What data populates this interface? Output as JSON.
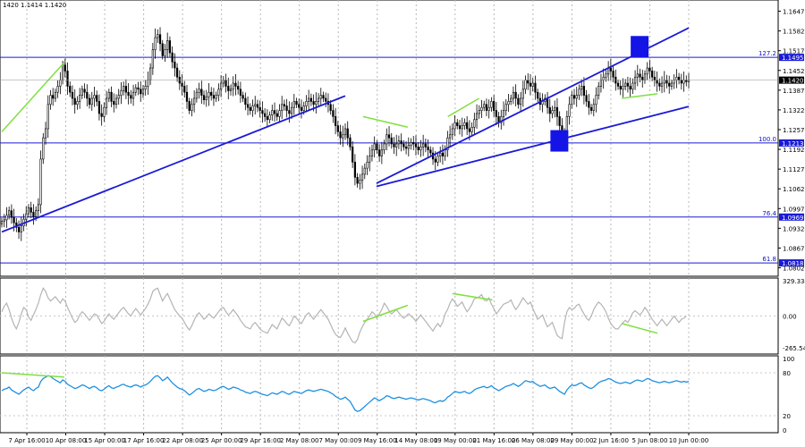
{
  "header": {
    "ohlc": "1420 1.1414 1.1420"
  },
  "colors": {
    "candle": "#000000",
    "level": "#1a1ad6",
    "trendline": "#1a1ad6",
    "divergence": "#80e040",
    "cci": "#b4b4b4",
    "rsi": "#1e90e0",
    "marker": "#1414e6",
    "price_tag": "#000000"
  },
  "chart_data": [
    {
      "type": "candlestick",
      "name": "",
      "ylim": [
        1.078,
        1.1678
      ],
      "price_ticks": [
        "1.1647",
        "1.1582",
        "1.1517",
        "1.1452",
        "1.1387",
        "1.1322",
        "1.1257",
        "1.1192",
        "1.1127",
        "1.1062",
        "1.0997",
        "1.0932",
        "1.0867",
        "1.0802"
      ],
      "current_price": "1.1420",
      "levels": [
        {
          "ratio": "127.2",
          "value": "1.1495"
        },
        {
          "ratio": "100.0",
          "value": "1.1213"
        },
        {
          "ratio": "76.4",
          "value": "1.0969"
        },
        {
          "ratio": "61.8",
          "value": "1.0818"
        }
      ],
      "x_labels": [
        "7 Apr 16:00",
        "10 Apr 08:00",
        "15 Apr 00:00",
        "17 Apr 16:00",
        "22 Apr 08:00",
        "25 Apr 00:00",
        "29 Apr 16:00",
        "2 May 08:00",
        "7 May 00:00",
        "9 May 16:00",
        "14 May 08:00",
        "19 May 00:00",
        "21 May 16:00",
        "26 May 08:00",
        "29 May 00:00",
        "2 Jun 16:00",
        "5 Jun 08:00",
        "10 Jun 00:00"
      ],
      "series": {
        "close": [
          1.0955,
          1.096,
          1.0975,
          1.099,
          1.0968,
          1.095,
          1.0935,
          1.092,
          1.094,
          1.0962,
          1.098,
          1.1,
          1.0985,
          1.097,
          1.099,
          1.101,
          1.116,
          1.123,
          1.126,
          1.134,
          1.137,
          1.136,
          1.138,
          1.14,
          1.142,
          1.147,
          1.145,
          1.14,
          1.138,
          1.136,
          1.134,
          1.135,
          1.137,
          1.139,
          1.138,
          1.136,
          1.134,
          1.136,
          1.137,
          1.135,
          1.131,
          1.13,
          1.133,
          1.136,
          1.138,
          1.135,
          1.134,
          1.136,
          1.137,
          1.1385,
          1.14,
          1.138,
          1.137,
          1.136,
          1.138,
          1.1395,
          1.139,
          1.1375,
          1.139,
          1.14,
          1.142,
          1.146,
          1.152,
          1.156,
          1.157,
          1.154,
          1.15,
          1.152,
          1.155,
          1.151,
          1.148,
          1.146,
          1.143,
          1.141,
          1.14,
          1.138,
          1.135,
          1.132,
          1.134,
          1.136,
          1.138,
          1.139,
          1.137,
          1.1355,
          1.1365,
          1.138,
          1.137,
          1.136,
          1.137,
          1.139,
          1.141,
          1.142,
          1.14,
          1.1385,
          1.139,
          1.141,
          1.14,
          1.139,
          1.137,
          1.136,
          1.134,
          1.133,
          1.132,
          1.1335,
          1.134,
          1.133,
          1.132,
          1.131,
          1.13,
          1.129,
          1.1305,
          1.132,
          1.131,
          1.13,
          1.132,
          1.134,
          1.1335,
          1.132,
          1.131,
          1.133,
          1.135,
          1.134,
          1.133,
          1.132,
          1.1335,
          1.135,
          1.136,
          1.135,
          1.134,
          1.135,
          1.136,
          1.137,
          1.136,
          1.135,
          1.134,
          1.132,
          1.13,
          1.127,
          1.125,
          1.123,
          1.124,
          1.126,
          1.123,
          1.12,
          1.115,
          1.11,
          1.108,
          1.109,
          1.111,
          1.113,
          1.115,
          1.117,
          1.119,
          1.121,
          1.119,
          1.117,
          1.119,
          1.121,
          1.124,
          1.123,
          1.121,
          1.12,
          1.121,
          1.122,
          1.121,
          1.12,
          1.1195,
          1.1205,
          1.1215,
          1.121,
          1.12,
          1.119,
          1.12,
          1.121,
          1.12,
          1.119,
          1.118,
          1.116,
          1.115,
          1.117,
          1.118,
          1.117,
          1.119,
          1.123,
          1.124,
          1.126,
          1.128,
          1.127,
          1.126,
          1.127,
          1.128,
          1.126,
          1.125,
          1.1265,
          1.129,
          1.131,
          1.132,
          1.133,
          1.134,
          1.132,
          1.133,
          1.135,
          1.132,
          1.13,
          1.128,
          1.13,
          1.132,
          1.134,
          1.135,
          1.136,
          1.138,
          1.136,
          1.134,
          1.136,
          1.139,
          1.142,
          1.141,
          1.14,
          1.141,
          1.138,
          1.136,
          1.134,
          1.135,
          1.136,
          1.133,
          1.131,
          1.132,
          1.133,
          1.13,
          1.127,
          1.125,
          1.124,
          1.13,
          1.134,
          1.137,
          1.136,
          1.137,
          1.139,
          1.14,
          1.137,
          1.135,
          1.133,
          1.132,
          1.134,
          1.137,
          1.14,
          1.142,
          1.143,
          1.144,
          1.146,
          1.145,
          1.143,
          1.141,
          1.14,
          1.139,
          1.14,
          1.141,
          1.14,
          1.139,
          1.141,
          1.143,
          1.144,
          1.143,
          1.142,
          1.144,
          1.146,
          1.145,
          1.143,
          1.142,
          1.141,
          1.14,
          1.141,
          1.142,
          1.141,
          1.14,
          1.141,
          1.142,
          1.143,
          1.142,
          1.141,
          1.142,
          1.1415,
          1.142
        ]
      },
      "trendlines": [
        {
          "from": [
            0,
            1.092
          ],
          "to": [
            77,
            1.1368
          ]
        },
        {
          "from": [
            84,
            1.108
          ],
          "to": [
            154,
            1.1592
          ]
        },
        {
          "from": [
            84,
            1.107
          ],
          "to": [
            154,
            1.1333
          ]
        }
      ],
      "divergences": [
        {
          "from": [
            0,
            1.125
          ],
          "to": [
            14,
            1.1478
          ]
        },
        {
          "from": [
            81,
            1.13
          ],
          "to": [
            91,
            1.1265
          ]
        },
        {
          "from": [
            100,
            1.13
          ],
          "to": [
            107,
            1.136
          ]
        },
        {
          "from": [
            139,
            1.136
          ],
          "to": [
            147,
            1.1375
          ]
        }
      ],
      "markers": [
        {
          "x": 125,
          "price": 1.122
        },
        {
          "x": 143,
          "price": 1.153
        }
      ]
    },
    {
      "type": "line",
      "name": "",
      "ylim": [
        -329.3341,
        329.3341
      ],
      "ticks": [
        "329.3341",
        "0.00",
        "-265.544"
      ],
      "values": [
        40,
        90,
        120,
        60,
        -20,
        -80,
        -120,
        -60,
        20,
        80,
        60,
        -10,
        -40,
        10,
        60,
        120,
        200,
        260,
        230,
        170,
        140,
        160,
        180,
        150,
        120,
        160,
        140,
        80,
        30,
        -20,
        -60,
        -40,
        10,
        40,
        20,
        -10,
        -40,
        -10,
        20,
        10,
        -30,
        -70,
        -50,
        -10,
        20,
        -10,
        -30,
        0,
        30,
        60,
        80,
        50,
        20,
        0,
        40,
        70,
        40,
        10,
        40,
        70,
        110,
        160,
        230,
        250,
        260,
        200,
        140,
        180,
        210,
        160,
        110,
        60,
        30,
        0,
        -20,
        -60,
        -100,
        -130,
        -90,
        -40,
        10,
        30,
        0,
        -30,
        -10,
        20,
        0,
        -20,
        10,
        40,
        70,
        80,
        40,
        10,
        30,
        60,
        30,
        0,
        -40,
        -70,
        -100,
        -110,
        -120,
        -80,
        -60,
        -90,
        -120,
        -140,
        -150,
        -160,
        -120,
        -80,
        -100,
        -120,
        -70,
        -20,
        -40,
        -70,
        -90,
        -50,
        0,
        -20,
        -50,
        -70,
        -30,
        10,
        30,
        0,
        -30,
        0,
        30,
        60,
        30,
        0,
        -30,
        -80,
        -130,
        -170,
        -190,
        -200,
        -160,
        -110,
        -160,
        -200,
        -240,
        -250,
        -220,
        -150,
        -100,
        -60,
        -30,
        0,
        40,
        20,
        -20,
        20,
        60,
        120,
        90,
        50,
        20,
        40,
        60,
        30,
        0,
        -20,
        0,
        20,
        0,
        -20,
        -50,
        -20,
        10,
        -20,
        -50,
        -80,
        -110,
        -140,
        -100,
        -70,
        -100,
        -60,
        20,
        60,
        120,
        160,
        130,
        90,
        110,
        130,
        80,
        40,
        70,
        110,
        160,
        170,
        180,
        200,
        150,
        140,
        170,
        110,
        70,
        20,
        50,
        80,
        110,
        120,
        130,
        150,
        100,
        60,
        90,
        130,
        170,
        140,
        110,
        130,
        70,
        20,
        -30,
        -10,
        10,
        -50,
        -100,
        -80,
        -60,
        -120,
        -180,
        -200,
        -210,
        -60,
        40,
        80,
        60,
        70,
        100,
        110,
        60,
        20,
        -20,
        -40,
        0,
        60,
        100,
        130,
        110,
        80,
        40,
        -20,
        -70,
        -100,
        -120,
        -120,
        -90,
        -60,
        -40,
        -60,
        -20,
        30,
        50,
        30,
        10,
        40,
        80,
        50,
        10,
        -30,
        -60,
        -90,
        -60,
        -30,
        -60,
        -90,
        -60,
        -30,
        0,
        -30,
        -60,
        -30,
        -20,
        0
      ]
    },
    {
      "type": "line",
      "name": "",
      "ylim": [
        0,
        100
      ],
      "ticks": [
        "100",
        "80",
        "20",
        "0"
      ],
      "values": [
        55,
        57,
        58,
        60,
        56,
        54,
        52,
        50,
        53,
        56,
        58,
        60,
        57,
        55,
        58,
        60,
        68,
        72,
        74,
        76,
        75,
        72,
        70,
        68,
        66,
        70,
        68,
        64,
        62,
        60,
        58,
        59,
        61,
        63,
        62,
        60,
        58,
        60,
        61,
        59,
        56,
        55,
        57,
        60,
        62,
        59,
        58,
        60,
        61,
        63,
        64,
        62,
        61,
        60,
        62,
        63,
        62,
        60,
        62,
        63,
        65,
        68,
        72,
        75,
        76,
        73,
        69,
        71,
        74,
        70,
        66,
        63,
        60,
        58,
        57,
        55,
        52,
        49,
        51,
        54,
        57,
        58,
        56,
        54,
        55,
        57,
        56,
        55,
        56,
        58,
        60,
        61,
        59,
        57,
        58,
        60,
        59,
        58,
        56,
        55,
        53,
        52,
        51,
        53,
        54,
        53,
        51,
        50,
        49,
        48,
        50,
        52,
        51,
        50,
        52,
        54,
        53,
        51,
        50,
        52,
        54,
        53,
        52,
        51,
        53,
        55,
        56,
        55,
        54,
        55,
        56,
        57,
        56,
        55,
        54,
        52,
        50,
        47,
        45,
        43,
        44,
        46,
        43,
        40,
        34,
        28,
        26,
        27,
        30,
        33,
        36,
        39,
        42,
        45,
        43,
        41,
        43,
        45,
        48,
        47,
        45,
        44,
        45,
        46,
        45,
        44,
        43,
        44,
        45,
        44,
        43,
        42,
        43,
        44,
        43,
        42,
        41,
        39,
        38,
        40,
        41,
        40,
        42,
        46,
        48,
        51,
        54,
        53,
        52,
        53,
        54,
        52,
        51,
        53,
        56,
        58,
        59,
        60,
        61,
        59,
        60,
        62,
        59,
        57,
        55,
        57,
        59,
        61,
        62,
        63,
        65,
        63,
        61,
        63,
        66,
        69,
        68,
        67,
        68,
        65,
        63,
        61,
        62,
        63,
        60,
        58,
        59,
        60,
        57,
        54,
        52,
        50,
        56,
        60,
        63,
        62,
        63,
        65,
        66,
        63,
        61,
        59,
        58,
        60,
        63,
        66,
        68,
        69,
        70,
        72,
        71,
        69,
        67,
        66,
        65,
        66,
        67,
        66,
        65,
        67,
        69,
        70,
        69,
        68,
        70,
        72,
        71,
        69,
        68,
        67,
        66,
        67,
        68,
        67,
        66,
        67,
        68,
        69,
        68,
        67,
        68,
        67,
        68
      ]
    }
  ]
}
